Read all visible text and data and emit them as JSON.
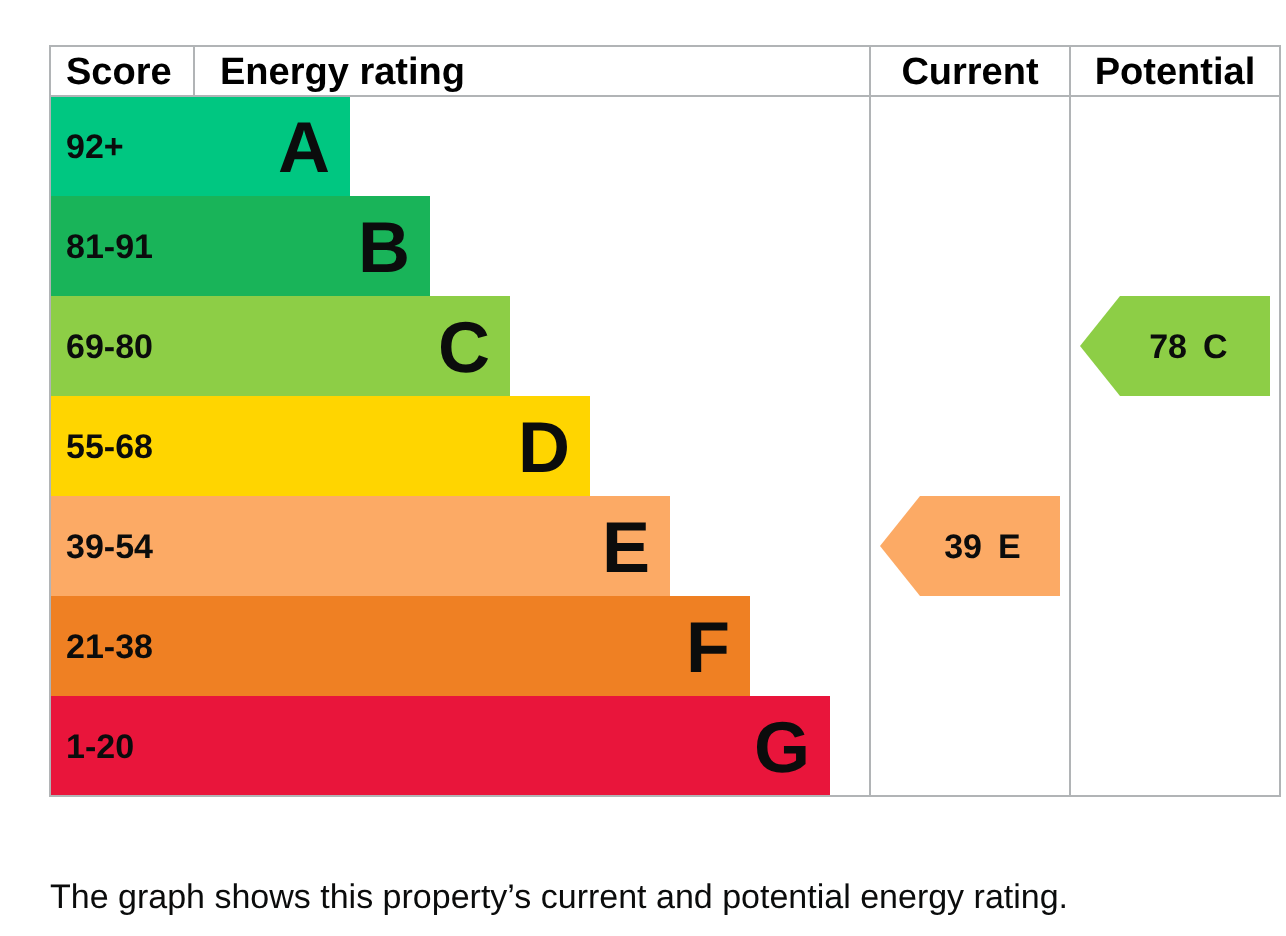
{
  "chart_data": {
    "type": "other",
    "data_labels": true,
    "ylabel": "Score",
    "xlabel": "Energy rating",
    "categories": [
      "92+",
      "81-91",
      "69-80",
      "55-68",
      "39-54",
      "21-38",
      "1-20"
    ],
    "value_labels": [
      "A",
      "B",
      "C",
      "D",
      "E",
      "F",
      "G"
    ],
    "colors": [
      "#00c781",
      "#19b459",
      "#8dce46",
      "#ffd500",
      "#fcaa65",
      "#ef8023",
      "#e9153b"
    ],
    "series": [
      {
        "values": [
          null,
          null,
          null,
          null,
          39,
          null,
          null
        ],
        "colors": [
          null,
          null,
          null,
          null,
          "#fcaa65",
          null,
          null
        ]
      },
      {
        "values": [
          null,
          null,
          78,
          null,
          null,
          null,
          null
        ],
        "colors": [
          null,
          null,
          "#8dce46",
          null,
          null,
          null,
          null
        ]
      }
    ],
    "annotations": [
      "Current",
      "Potential",
      "The graph shows this property’s current and potential energy rating."
    ]
  }
}
